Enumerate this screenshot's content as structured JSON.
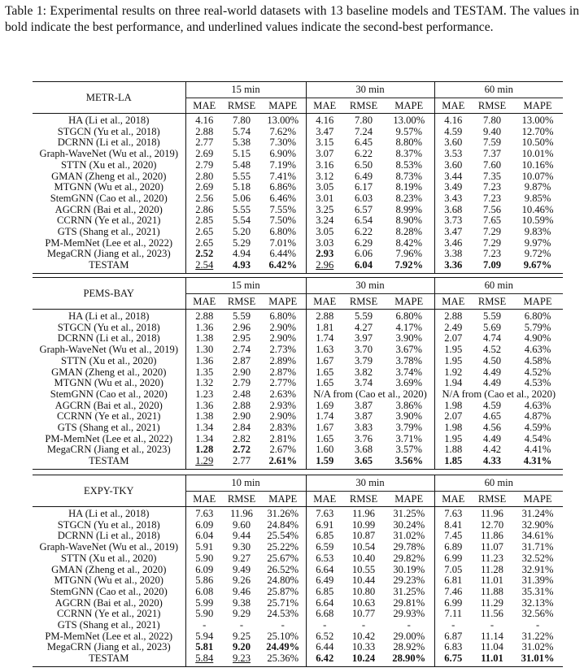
{
  "caption": "Table 1: Experimental results on three real-world datasets with 13 baseline models and TESTAM. The values in bold indicate the best performance, and underlined values indicate the second-best performance.",
  "metrics": [
    "MAE",
    "RMSE",
    "MAPE"
  ],
  "sections": [
    {
      "dataset": "METR-LA",
      "horizons": [
        "15 min",
        "30 min",
        "60 min"
      ],
      "rows": [
        {
          "model": "HA (Li et al., 2018)",
          "values": [
            "4.16",
            "7.80",
            "13.00%",
            "4.16",
            "7.80",
            "13.00%",
            "4.16",
            "7.80",
            "13.00%"
          ]
        },
        {
          "model": "STGCN (Yu et al., 2018)",
          "values": [
            "2.88",
            "5.74",
            "7.62%",
            "3.47",
            "7.24",
            "9.57%",
            "4.59",
            "9.40",
            "12.70%"
          ]
        },
        {
          "model": "DCRNN (Li et al., 2018)",
          "values": [
            "2.77",
            "5.38",
            "7.30%",
            "3.15",
            "6.45",
            "8.80%",
            "3.60",
            "7.59",
            "10.50%"
          ]
        },
        {
          "model": "Graph-WaveNet (Wu et al., 2019)",
          "values": [
            "2.69",
            "5.15",
            "6.90%",
            "3.07",
            "6.22",
            "8.37%",
            "3.53",
            "7.37",
            "10.01%"
          ]
        },
        {
          "model": "STTN (Xu et al., 2020)",
          "values": [
            "2.79",
            "5.48",
            "7.19%",
            "3.16",
            "6.50",
            "8.53%",
            "3.60",
            "7.60",
            "10.16%"
          ]
        },
        {
          "model": "GMAN (Zheng et al., 2020)",
          "values": [
            "2.80",
            "5.55",
            "7.41%",
            "3.12",
            "6.49",
            "8.73%",
            "3.44",
            "7.35",
            "10.07%"
          ]
        },
        {
          "model": "MTGNN (Wu et al., 2020)",
          "values": [
            "2.69",
            "5.18",
            "6.86%",
            "3.05",
            "6.17",
            "8.19%",
            "3.49",
            "7.23",
            "9.87%"
          ]
        },
        {
          "model": "StemGNN (Cao et al., 2020)",
          "values": [
            "2.56",
            "5.06",
            "6.46%",
            "3.01",
            "6.03",
            "8.23%",
            "3.43",
            "7.23",
            "9.85%"
          ]
        },
        {
          "model": "AGCRN (Bai et al., 2020)",
          "values": [
            "2.86",
            "5.55",
            "7.55%",
            "3.25",
            "6.57",
            "8.99%",
            "3.68",
            "7.56",
            "10.46%"
          ]
        },
        {
          "model": "CCRNN (Ye et al., 2021)",
          "values": [
            "2.85",
            "5.54",
            "7.50%",
            "3.24",
            "6.54",
            "8.90%",
            "3.73",
            "7.65",
            "10.59%"
          ]
        },
        {
          "model": "GTS (Shang et al., 2021)",
          "values": [
            "2.65",
            "5.20",
            "6.80%",
            "3.05",
            "6.22",
            "8.28%",
            "3.47",
            "7.29",
            "9.83%"
          ]
        },
        {
          "model": "PM-MemNet (Lee et al., 2022)",
          "values": [
            "2.65",
            "5.29",
            "7.01%",
            "3.03",
            "6.29",
            "8.42%",
            "3.46",
            "7.29",
            "9.97%"
          ]
        },
        {
          "model": "MegaCRN (Jiang et al., 2023)",
          "values": [
            "2.52",
            "4.94",
            "6.44%",
            "2.93",
            "6.06",
            "7.96%",
            "3.38",
            "7.23",
            "9.72%"
          ],
          "bold": [
            0,
            3
          ]
        },
        {
          "model": "TESTAM",
          "values": [
            "2.54",
            "4.93",
            "6.42%",
            "2.96",
            "6.04",
            "7.92%",
            "3.36",
            "7.09",
            "9.67%"
          ],
          "bold": [
            1,
            2,
            4,
            5,
            6,
            7,
            8
          ],
          "underline": [
            0,
            3
          ]
        }
      ]
    },
    {
      "dataset": "PEMS-BAY",
      "horizons": [
        "15 min",
        "30 min",
        "60 min"
      ],
      "rows": [
        {
          "model": "HA (Li et al., 2018)",
          "values": [
            "2.88",
            "5.59",
            "6.80%",
            "2.88",
            "5.59",
            "6.80%",
            "2.88",
            "5.59",
            "6.80%"
          ]
        },
        {
          "model": "STGCN (Yu et al., 2018)",
          "values": [
            "1.36",
            "2.96",
            "2.90%",
            "1.81",
            "4.27",
            "4.17%",
            "2.49",
            "5.69",
            "5.79%"
          ]
        },
        {
          "model": "DCRNN (Li et al., 2018)",
          "values": [
            "1.38",
            "2.95",
            "2.90%",
            "1.74",
            "3.97",
            "3.90%",
            "2.07",
            "4.74",
            "4.90%"
          ]
        },
        {
          "model": "Graph-WaveNet (Wu et al., 2019)",
          "values": [
            "1.30",
            "2.74",
            "2.73%",
            "1.63",
            "3.70",
            "3.67%",
            "1.95",
            "4.52",
            "4.63%"
          ]
        },
        {
          "model": "STTN (Xu et al., 2020)",
          "values": [
            "1.36",
            "2.87",
            "2.89%",
            "1.67",
            "3.79",
            "3.78%",
            "1.95",
            "4.50",
            "4.58%"
          ]
        },
        {
          "model": "GMAN (Zheng et al., 2020)",
          "values": [
            "1.35",
            "2.90",
            "2.87%",
            "1.65",
            "3.82",
            "3.74%",
            "1.92",
            "4.49",
            "4.52%"
          ]
        },
        {
          "model": "MTGNN (Wu et al., 2020)",
          "values": [
            "1.32",
            "2.79",
            "2.77%",
            "1.65",
            "3.74",
            "3.69%",
            "1.94",
            "4.49",
            "4.53%"
          ]
        },
        {
          "model": "StemGNN (Cao et al., 2020)",
          "values": [
            "1.23",
            "2.48",
            "2.63%",
            "N/A from (Cao et al., 2020)",
            "N/A from (Cao et al., 2020)"
          ],
          "spans": [
            1,
            1,
            1,
            3,
            3
          ]
        },
        {
          "model": "AGCRN (Bai et al., 2020)",
          "values": [
            "1.36",
            "2.88",
            "2.93%",
            "1.69",
            "3.87",
            "3.86%",
            "1.98",
            "4.59",
            "4.63%"
          ]
        },
        {
          "model": "CCRNN (Ye et al., 2021)",
          "values": [
            "1.38",
            "2.90",
            "2.90%",
            "1.74",
            "3.87",
            "3.90%",
            "2.07",
            "4.65",
            "4.87%"
          ]
        },
        {
          "model": "GTS (Shang et al., 2021)",
          "values": [
            "1.34",
            "2.84",
            "2.83%",
            "1.67",
            "3.83",
            "3.79%",
            "1.98",
            "4.56",
            "4.59%"
          ]
        },
        {
          "model": "PM-MemNet (Lee et al., 2022)",
          "values": [
            "1.34",
            "2.82",
            "2.81%",
            "1.65",
            "3.76",
            "3.71%",
            "1.95",
            "4.49",
            "4.54%"
          ]
        },
        {
          "model": "MegaCRN (Jiang et al., 2023)",
          "values": [
            "1.28",
            "2.72",
            "2.67%",
            "1.60",
            "3.68",
            "3.57%",
            "1.88",
            "4.42",
            "4.41%"
          ],
          "bold": [
            0,
            1
          ]
        },
        {
          "model": "TESTAM",
          "values": [
            "1.29",
            "2.77",
            "2.61%",
            "1.59",
            "3.65",
            "3.56%",
            "1.85",
            "4.33",
            "4.31%"
          ],
          "bold": [
            2,
            3,
            4,
            5,
            6,
            7,
            8
          ],
          "underline": [
            0
          ]
        }
      ]
    },
    {
      "dataset": "EXPY-TKY",
      "horizons": [
        "10 min",
        "30 min",
        "60 min"
      ],
      "rows": [
        {
          "model": "HA (Li et al., 2018)",
          "values": [
            "7.63",
            "11.96",
            "31.26%",
            "7.63",
            "11.96",
            "31.25%",
            "7.63",
            "11.96",
            "31.24%"
          ]
        },
        {
          "model": "STGCN (Yu et al., 2018)",
          "values": [
            "6.09",
            "9.60",
            "24.84%",
            "6.91",
            "10.99",
            "30.24%",
            "8.41",
            "12.70",
            "32.90%"
          ]
        },
        {
          "model": "DCRNN (Li et al., 2018)",
          "values": [
            "6.04",
            "9.44",
            "25.54%",
            "6.85",
            "10.87",
            "31.02%",
            "7.45",
            "11.86",
            "34.61%"
          ]
        },
        {
          "model": "Graph-WaveNet (Wu et al., 2019)",
          "values": [
            "5.91",
            "9.30",
            "25.22%",
            "6.59",
            "10.54",
            "29.78%",
            "6.89",
            "11.07",
            "31.71%"
          ]
        },
        {
          "model": "STTN (Xu et al., 2020)",
          "values": [
            "5.90",
            "9.27",
            "25.67%",
            "6.53",
            "10.40",
            "29.82%",
            "6.99",
            "11.23",
            "32.52%"
          ]
        },
        {
          "model": "GMAN (Zheng et al., 2020)",
          "values": [
            "6.09",
            "9.49",
            "26.52%",
            "6.64",
            "10.55",
            "30.19%",
            "7.05",
            "11.28",
            "32.91%"
          ]
        },
        {
          "model": "MTGNN (Wu et al., 2020)",
          "values": [
            "5.86",
            "9.26",
            "24.80%",
            "6.49",
            "10.44",
            "29.23%",
            "6.81",
            "11.01",
            "31.39%"
          ]
        },
        {
          "model": "StemGNN (Cao et al., 2020)",
          "values": [
            "6.08",
            "9.46",
            "25.87%",
            "6.85",
            "10.80",
            "31.25%",
            "7.46",
            "11.88",
            "35.31%"
          ]
        },
        {
          "model": "AGCRN (Bai et al., 2020)",
          "values": [
            "5.99",
            "9.38",
            "25.71%",
            "6.64",
            "10.63",
            "29.81%",
            "6.99",
            "11.29",
            "32.13%"
          ]
        },
        {
          "model": "CCRNN (Ye et al., 2021)",
          "values": [
            "5.90",
            "9.29",
            "24.53%",
            "6.68",
            "10.77",
            "29.93%",
            "7.11",
            "11.56",
            "32.56%"
          ]
        },
        {
          "model": "GTS (Shang et al., 2021)",
          "values": [
            "-",
            "-",
            "-",
            "-",
            "-",
            "-",
            "-",
            "-",
            "-"
          ]
        },
        {
          "model": "PM-MemNet (Lee et al., 2022)",
          "values": [
            "5.94",
            "9.25",
            "25.10%",
            "6.52",
            "10.42",
            "29.00%",
            "6.87",
            "11.14",
            "31.22%"
          ]
        },
        {
          "model": "MegaCRN (Jiang et al., 2023)",
          "values": [
            "5.81",
            "9.20",
            "24.49%",
            "6.44",
            "10.33",
            "28.92%",
            "6.83",
            "11.04",
            "31.02%"
          ],
          "bold": [
            0,
            1,
            2
          ]
        },
        {
          "model": "TESTAM",
          "values": [
            "5.84",
            "9.23",
            "25.36%",
            "6.42",
            "10.24",
            "28.90%",
            "6.75",
            "11.01",
            "31.01%"
          ],
          "bold": [
            3,
            4,
            5,
            6,
            7,
            8
          ],
          "underline": [
            0,
            1
          ]
        }
      ]
    }
  ]
}
